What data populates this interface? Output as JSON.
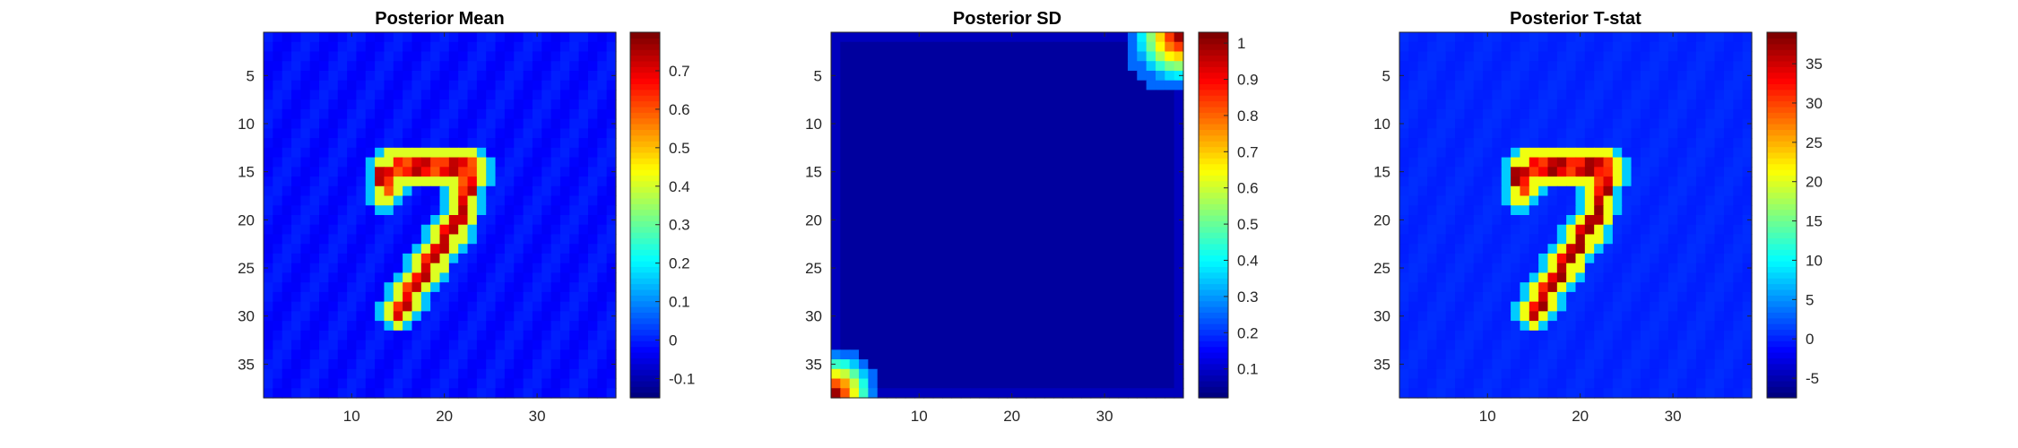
{
  "chart_data": [
    {
      "type": "heatmap",
      "title": "Posterior Mean",
      "grid_size": 38,
      "colormap": "jet",
      "x_ticks": [
        10,
        20,
        30
      ],
      "y_ticks": [
        5,
        10,
        15,
        20,
        25,
        30,
        35
      ],
      "colorbar": {
        "min": -0.15,
        "max": 0.8,
        "ticks": [
          -0.1,
          0,
          0.1,
          0.2,
          0.3,
          0.4,
          0.5,
          0.6,
          0.7
        ]
      },
      "pattern": "digit-7",
      "background_value": -0.02,
      "peak_value": 0.75
    },
    {
      "type": "heatmap",
      "title": "Posterior SD",
      "grid_size": 38,
      "colormap": "jet",
      "x_ticks": [
        10,
        20,
        30
      ],
      "y_ticks": [
        5,
        10,
        15,
        20,
        25,
        30,
        35
      ],
      "colorbar": {
        "min": 0.02,
        "max": 1.03,
        "ticks": [
          0.1,
          0.2,
          0.3,
          0.4,
          0.5,
          0.6,
          0.7,
          0.8,
          0.9,
          1
        ]
      },
      "pattern": "corners",
      "background_value": 0.05,
      "peak_value": 1.0
    },
    {
      "type": "heatmap",
      "title": "Posterior T-stat",
      "grid_size": 38,
      "colormap": "jet",
      "x_ticks": [
        10,
        20,
        30
      ],
      "y_ticks": [
        5,
        10,
        15,
        20,
        25,
        30,
        35
      ],
      "colorbar": {
        "min": -7.5,
        "max": 39,
        "ticks": [
          -5,
          0,
          5,
          10,
          15,
          20,
          25,
          30,
          35
        ]
      },
      "pattern": "digit-7",
      "background_value": 0,
      "peak_value": 38
    }
  ]
}
